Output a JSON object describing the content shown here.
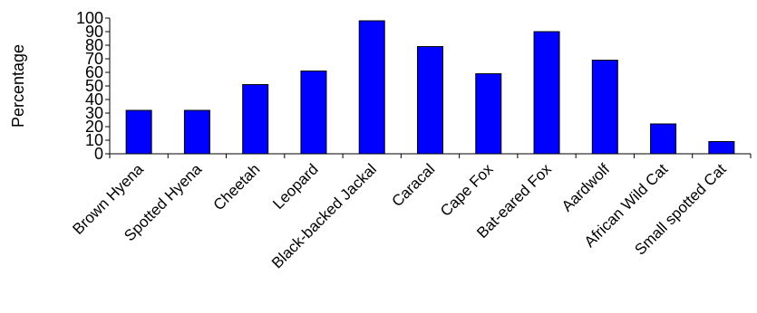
{
  "chart_data": {
    "type": "bar",
    "title": "",
    "xlabel": "",
    "ylabel": "Percentage",
    "ylim": [
      0,
      100
    ],
    "yticks": [
      0,
      10,
      20,
      30,
      40,
      50,
      60,
      70,
      80,
      90,
      100
    ],
    "grid": false,
    "legend": "none",
    "bar_color": "#0000ff",
    "bar_edge_color": "#000000",
    "categories": [
      "Brown Hyena",
      "Spotted Hyena",
      "Cheetah",
      "Leopard",
      "Black-backed Jackal",
      "Caracal",
      "Cape Fox",
      "Bat-eared Fox",
      "Aardwolf",
      "African Wild Cat",
      "Small spotted Cat"
    ],
    "values": [
      32,
      32,
      51,
      61,
      98,
      79,
      59,
      90,
      69,
      22,
      9
    ]
  }
}
